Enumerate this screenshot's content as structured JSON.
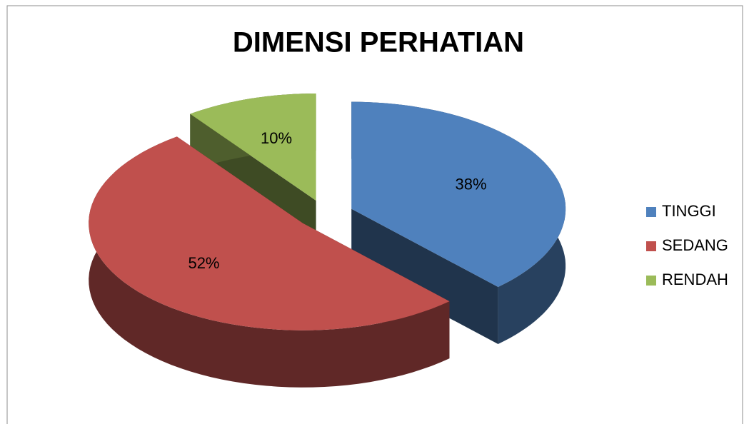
{
  "chart_data": {
    "type": "pie",
    "title": "DIMENSI PERHATIAN",
    "categories": [
      "TINGGI",
      "SEDANG",
      "RENDAH"
    ],
    "values": [
      38,
      52,
      10
    ],
    "value_labels": [
      "38%",
      "52%",
      "10%"
    ],
    "colors": [
      "#4f81bd",
      "#c0504d",
      "#9bbb59"
    ],
    "legend": "right"
  }
}
